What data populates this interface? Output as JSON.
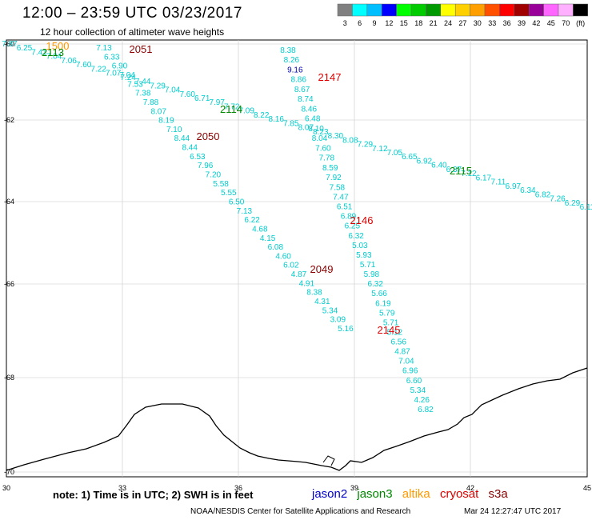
{
  "title": "12:00 – 23:59 UTC 03/23/2017",
  "subtitle": "12 hour collection of altimeter wave heights",
  "legend": {
    "labels": [
      "3",
      "6",
      "9",
      "12",
      "15",
      "18",
      "21",
      "24",
      "27",
      "30",
      "33",
      "36",
      "39",
      "42",
      "45",
      "70",
      "(ft)"
    ],
    "colors": [
      "#808080",
      "#00ffff",
      "#00bfff",
      "#0000ff",
      "#00ff00",
      "#00cc00",
      "#009900",
      "#ffff00",
      "#ffd000",
      "#ffa000",
      "#ff5000",
      "#ff0000",
      "#a00000",
      "#990099",
      "#ff66ff",
      "#ffb0ff",
      "#000000"
    ]
  },
  "axes": {
    "lon_labels": [
      "30",
      "33",
      "36",
      "39",
      "42",
      "45"
    ],
    "lat_labels": [
      "-60",
      "-62",
      "-64",
      "-66",
      "-68",
      "-70"
    ]
  },
  "note": "note: 1) Time is in UTC; 2) SWH is in feet",
  "satellites": [
    {
      "name": "jason2",
      "color": "#0000cc"
    },
    {
      "name": "jason3",
      "color": "#008800"
    },
    {
      "name": "altika",
      "color": "#ff9900"
    },
    {
      "name": "cryosat",
      "color": "#dd0000"
    },
    {
      "name": "s3a",
      "color": "#880000"
    }
  ],
  "footer_left": "NOAA/NESDIS Center for Satellite Applications and Research",
  "footer_right": "Mar 24 12:27:47 UTC 2017",
  "track_color": "#00cccc",
  "tracks": [
    {
      "id": "t2113",
      "values": [
        "7.87",
        "6.25",
        "7.41",
        "7.04",
        "7.06",
        "7.60",
        "7.22",
        "7.07",
        "7.24",
        "7.44",
        "7.29",
        "7.04",
        "7.60",
        "6.71",
        "7.97",
        "7.72",
        "7.09",
        "8.22",
        "8.16",
        "7.85",
        "8.07",
        "8.23",
        "8.30",
        "8.08",
        "7.29",
        "7.12",
        "7.05",
        "6.65",
        "6.92",
        "6.40",
        "6.37",
        "7.12",
        "6.17",
        "7.11",
        "6.97",
        "6.34",
        "6.82",
        "7.26",
        "6.29",
        "6.11"
      ]
    },
    {
      "id": "t2051",
      "values": [
        "7.13",
        "6.33",
        "6.90",
        "7.04",
        "7.53",
        "7.38",
        "7.88",
        "8.07",
        "8.19",
        "7.10",
        "8.44",
        "8.44",
        "6.53",
        "7.96",
        "7.20",
        "5.58",
        "5.55",
        "6.50",
        "7.13",
        "6.22",
        "4.68",
        "4.15",
        "6.08",
        "4.60",
        "6.02",
        "4.87",
        "4.91",
        "8.38",
        "4.31",
        "5.34",
        "3.09",
        "5.16"
      ]
    },
    {
      "id": "t2147",
      "values": [
        "8.38",
        "8.26",
        "9.16",
        "8.86",
        "8.67",
        "8.74",
        "8.46",
        "6.48",
        "8.10",
        "8.04",
        "7.60",
        "7.78",
        "8.59",
        "7.92",
        "7.58",
        "7.47",
        "6.51",
        "6.89",
        "6.25",
        "6.32",
        "5.03",
        "5.93",
        "5.71",
        "5.98",
        "6.32",
        "5.66",
        "6.19",
        "5.79",
        "5.71",
        "5.12",
        "6.56",
        "4.87",
        "7.04",
        "6.96",
        "6.60",
        "5.34",
        "4.26",
        "6.82"
      ]
    }
  ],
  "pass_labels": [
    {
      "text": "1500",
      "color": "#ff9900"
    },
    {
      "text": "2113",
      "color": "#008800"
    },
    {
      "text": "2051",
      "color": "#880000"
    },
    {
      "text": "2147",
      "color": "#dd0000"
    },
    {
      "text": "2114",
      "color": "#008800"
    },
    {
      "text": "2050",
      "color": "#880000"
    },
    {
      "text": "2115",
      "color": "#008800"
    },
    {
      "text": "2146",
      "color": "#dd0000"
    },
    {
      "text": "2049",
      "color": "#880000"
    },
    {
      "text": "2145",
      "color": "#dd0000"
    }
  ]
}
